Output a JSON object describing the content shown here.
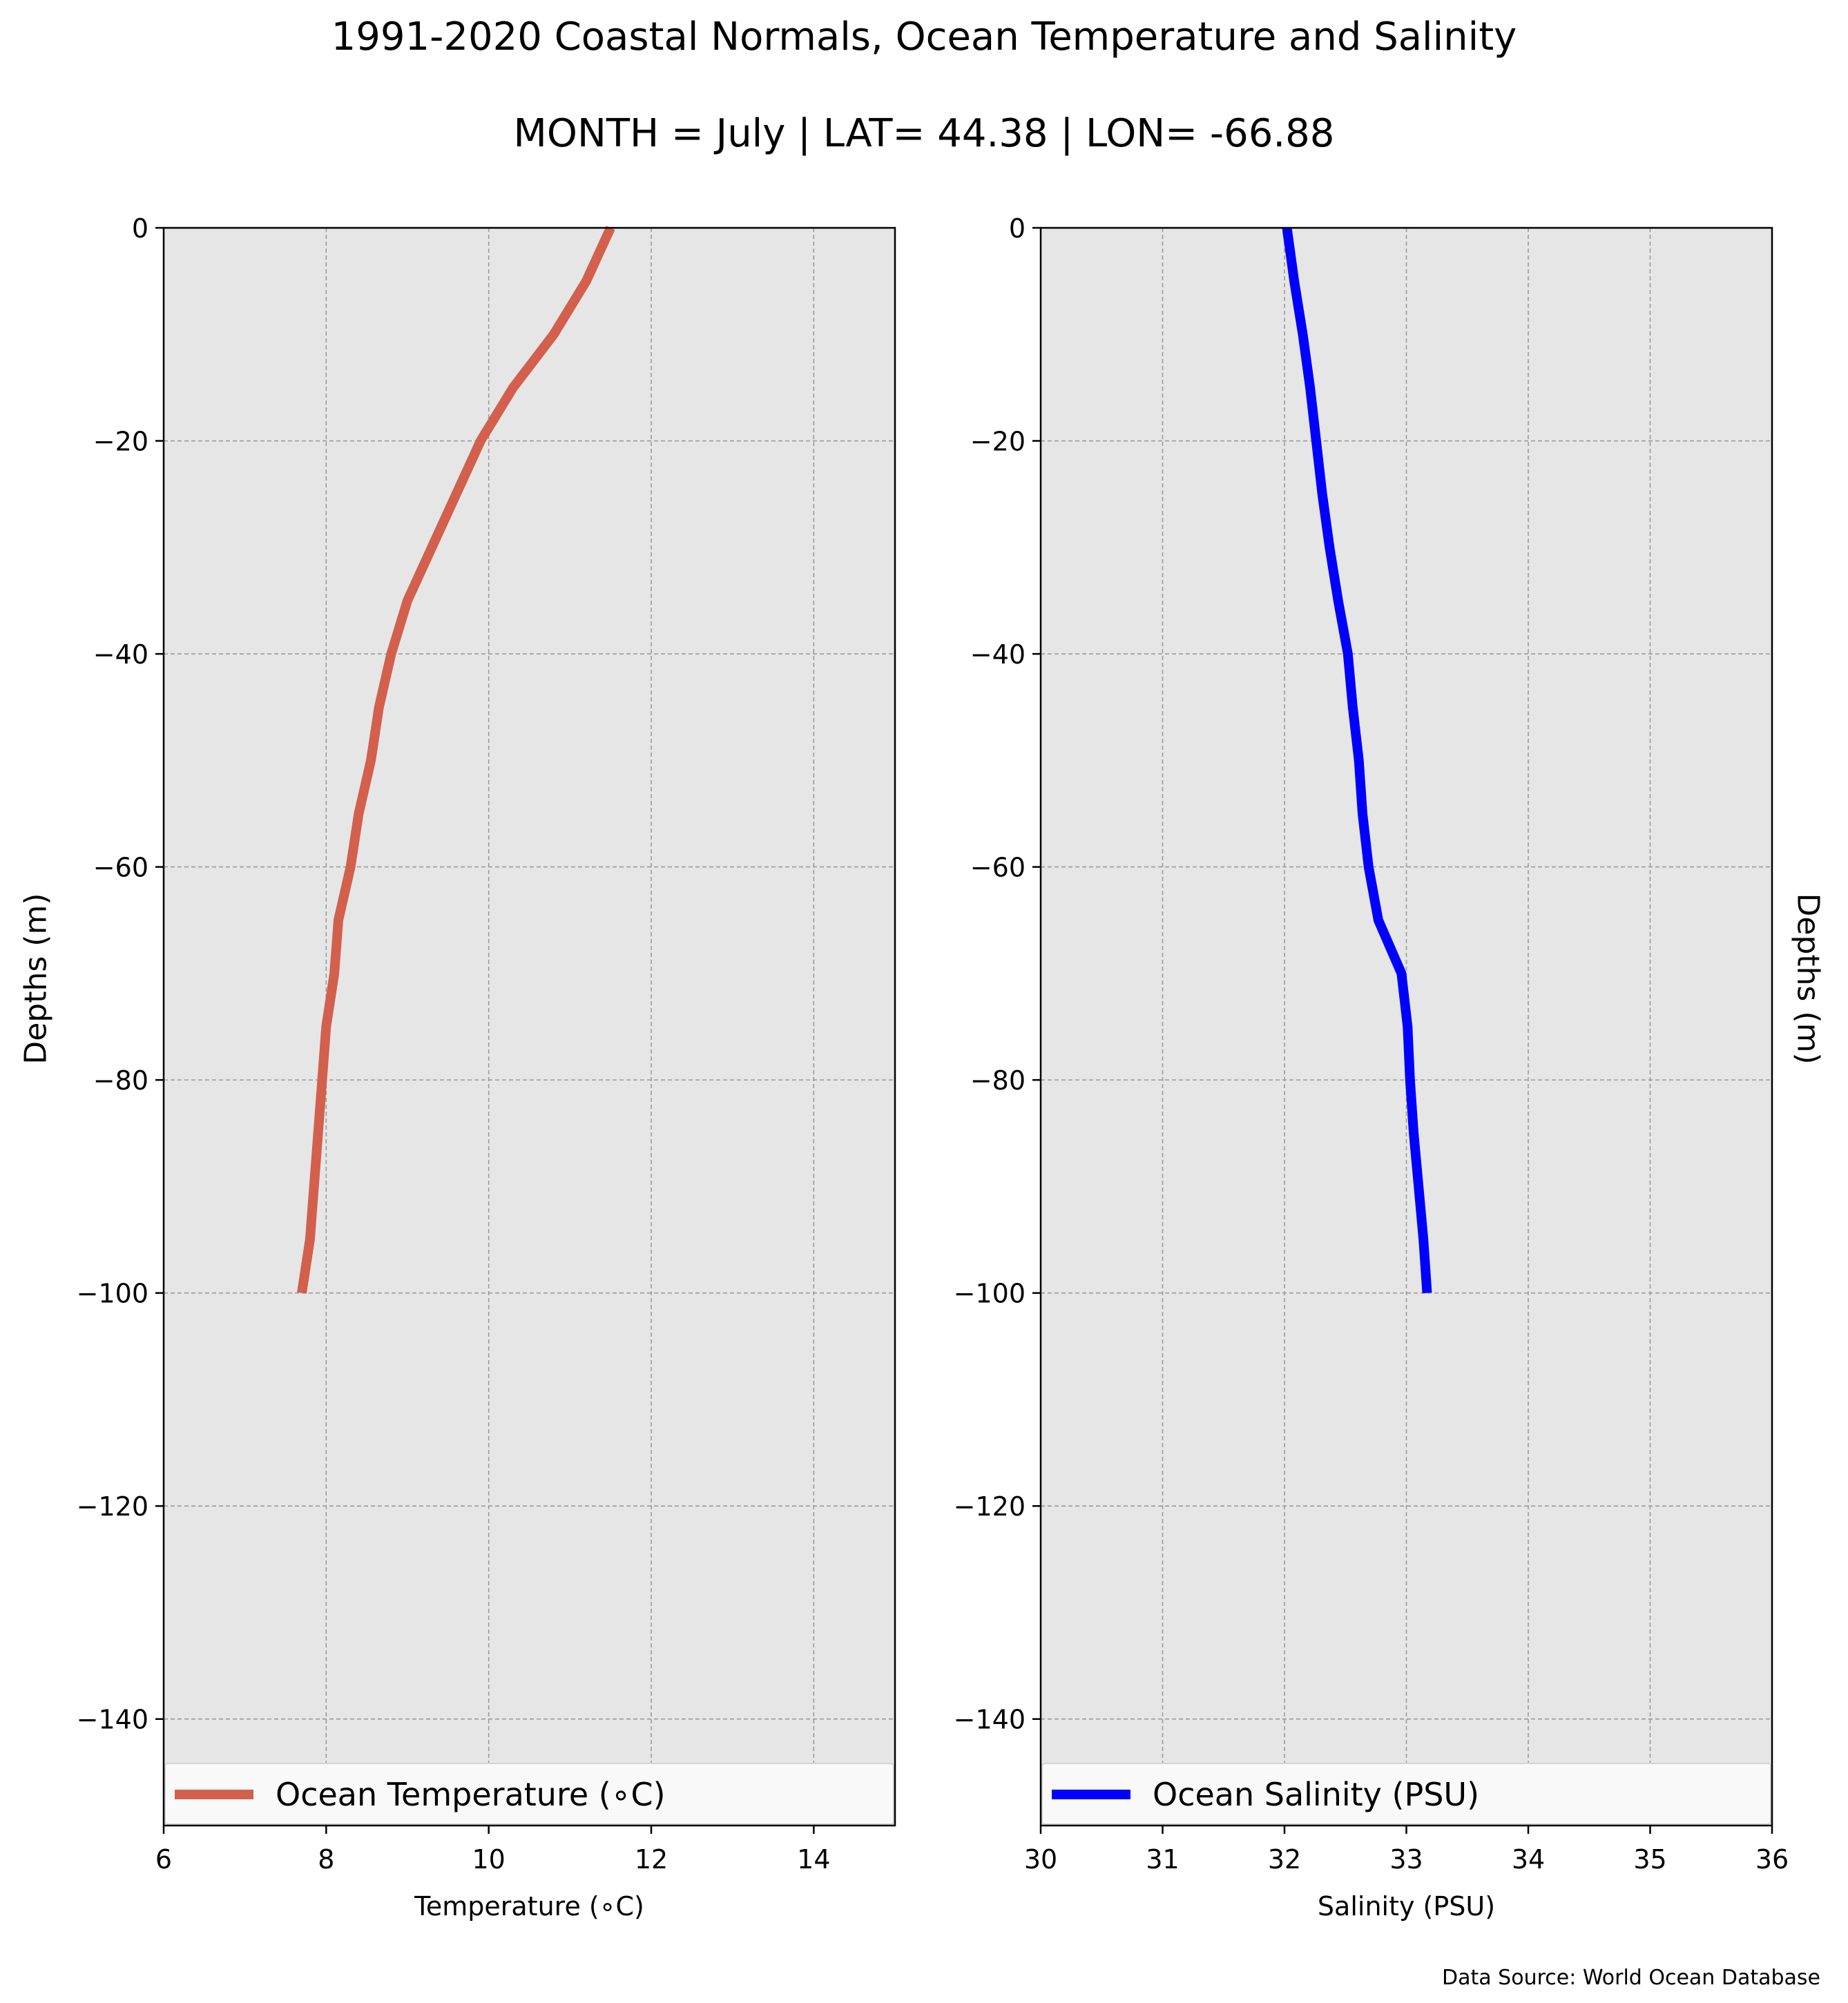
{
  "figure": {
    "title": "1991-2020 Coastal Normals, Ocean Temperature and Salinity",
    "subtitle": "MONTH = July | LAT= 44.38 | LON= -66.88",
    "source_note": "Data Source: World Ocean Database"
  },
  "chart_data": [
    {
      "type": "line",
      "xlabel": "Temperature (∘C)",
      "ylabel": "Depths (m)",
      "xlim": [
        6,
        15
      ],
      "ylim": [
        -150,
        0
      ],
      "xticks": [
        6,
        8,
        10,
        12,
        14
      ],
      "xtick_labels": [
        "6",
        "8",
        "10",
        "12",
        "14"
      ],
      "yticks": [
        0,
        -20,
        -40,
        -60,
        -80,
        -100,
        -120,
        -140
      ],
      "ytick_labels": [
        "0",
        "−20",
        "−40",
        "−60",
        "−80",
        "−100",
        "−120",
        "−140"
      ],
      "grid": true,
      "legend_position": "lower-center",
      "series": [
        {
          "name": "Ocean Temperature (∘C)",
          "color": "#d35f4d",
          "x": [
            11.5,
            11.2,
            10.8,
            10.3,
            9.9,
            9.6,
            9.3,
            9.0,
            8.8,
            8.65,
            8.55,
            8.4,
            8.3,
            8.15,
            8.1,
            8.0,
            7.95,
            7.9,
            7.85,
            7.8,
            7.7
          ],
          "y": [
            0,
            -5,
            -10,
            -15,
            -20,
            -25,
            -30,
            -35,
            -40,
            -45,
            -50,
            -55,
            -60,
            -65,
            -70,
            -75,
            -80,
            -85,
            -90,
            -95,
            -100
          ]
        }
      ]
    },
    {
      "type": "line",
      "xlabel": "Salinity (PSU)",
      "ylabel": "Depths (m)",
      "ylabel_side": "right",
      "xlim": [
        30,
        36
      ],
      "ylim": [
        -150,
        0
      ],
      "xticks": [
        30,
        31,
        32,
        33,
        34,
        35,
        36
      ],
      "xtick_labels": [
        "30",
        "31",
        "32",
        "33",
        "34",
        "35",
        "36"
      ],
      "yticks": [
        0,
        -20,
        -40,
        -60,
        -80,
        -100,
        -120,
        -140
      ],
      "ytick_labels": [
        "0",
        "−20",
        "−40",
        "−60",
        "−80",
        "−100",
        "−120",
        "−140"
      ],
      "grid": true,
      "legend_position": "lower-center",
      "series": [
        {
          "name": "Ocean Salinity (PSU)",
          "color": "#0000ff",
          "x": [
            32.02,
            32.08,
            32.15,
            32.21,
            32.26,
            32.31,
            32.37,
            32.44,
            32.52,
            32.56,
            32.61,
            32.64,
            32.69,
            32.77,
            32.96,
            33.01,
            33.03,
            33.06,
            33.1,
            33.14,
            33.17
          ],
          "y": [
            0,
            -5,
            -10,
            -15,
            -20,
            -25,
            -30,
            -35,
            -40,
            -45,
            -50,
            -55,
            -60,
            -65,
            -70,
            -75,
            -80,
            -85,
            -90,
            -95,
            -100
          ]
        }
      ]
    }
  ]
}
